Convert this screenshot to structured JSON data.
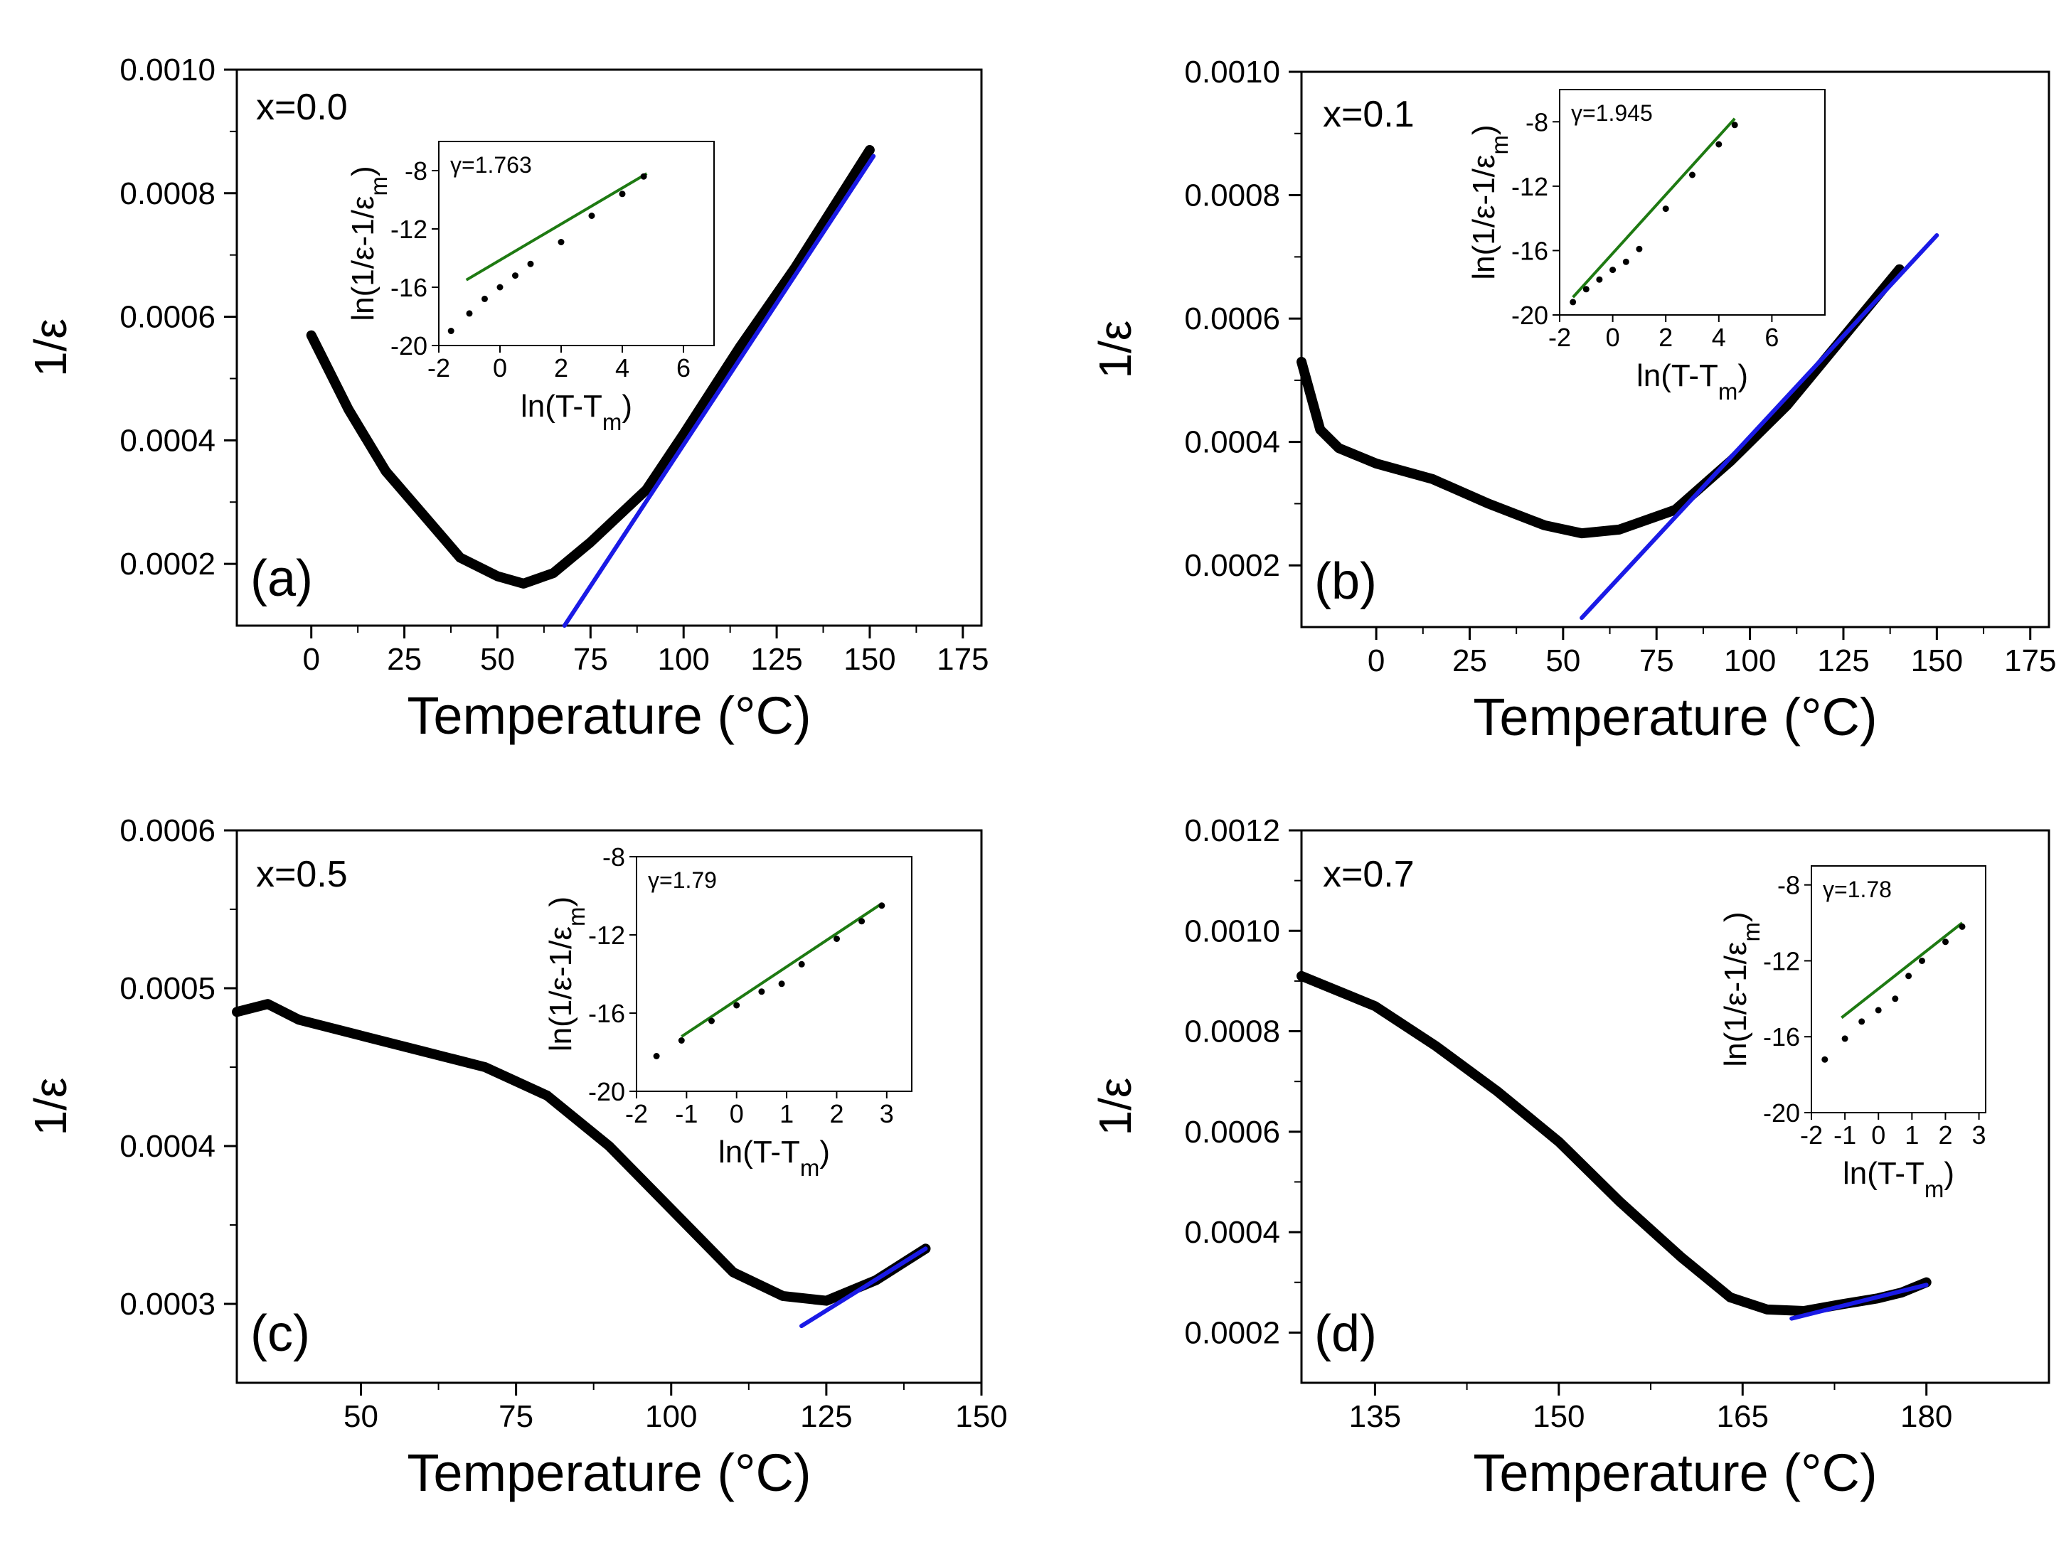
{
  "chart_data": [
    {
      "type": "line",
      "panel_label": "(a)",
      "composition_label": "x=0.0",
      "xlabel": "Temperature (°C)",
      "ylabel": "1/ε",
      "xlim": [
        -20,
        180
      ],
      "ylim": [
        0.0001,
        0.001
      ],
      "xticks": [
        "0",
        "25",
        "50",
        "75",
        "100",
        "125",
        "150",
        "175"
      ],
      "xtick_values": [
        0,
        25,
        50,
        75,
        100,
        125,
        150,
        175
      ],
      "yticks": [
        "0.0002",
        "0.0004",
        "0.0006",
        "0.0008",
        "0.0010"
      ],
      "ytick_values": [
        0.0002,
        0.0004,
        0.0006,
        0.0008,
        0.001
      ],
      "series": [
        {
          "name": "data",
          "color": "#000000",
          "points": [
            [
              0,
              0.00057
            ],
            [
              10,
              0.00045
            ],
            [
              20,
              0.00035
            ],
            [
              30,
              0.00028
            ],
            [
              40,
              0.00021
            ],
            [
              50,
              0.00018
            ],
            [
              57,
              0.000168
            ],
            [
              65,
              0.000185
            ],
            [
              75,
              0.000235
            ],
            [
              90,
              0.00032
            ],
            [
              100,
              0.00041
            ],
            [
              115,
              0.00055
            ],
            [
              130,
              0.00068
            ],
            [
              150,
              0.00087
            ]
          ]
        },
        {
          "name": "linear fit",
          "color": "#1a1ae6",
          "points": [
            [
              68,
              0.0001
            ],
            [
              151,
              0.00086
            ]
          ]
        }
      ],
      "inset": {
        "gamma_label": "γ=1.763",
        "xlabel": "ln(T-T_m)",
        "ylabel": "ln(1/ε-1/ε_m)",
        "xlim": [
          -2,
          7
        ],
        "ylim": [
          -20,
          -6
        ],
        "xticks": [
          "-2",
          "0",
          "2",
          "4",
          "6"
        ],
        "xtick_values": [
          -2,
          0,
          2,
          4,
          6
        ],
        "yticks": [
          "-20",
          "-16",
          "-12",
          "-8"
        ],
        "ytick_values": [
          -20,
          -16,
          -12,
          -8
        ],
        "data": [
          [
            -1.6,
            -19
          ],
          [
            -1,
            -17.8
          ],
          [
            -0.5,
            -16.8
          ],
          [
            0,
            -16
          ],
          [
            0.5,
            -15.2
          ],
          [
            1,
            -14.4
          ],
          [
            2,
            -12.9
          ],
          [
            3,
            -11.1
          ],
          [
            4,
            -9.6
          ],
          [
            4.7,
            -8.4
          ]
        ],
        "fit": [
          [
            -1.1,
            -15.5
          ],
          [
            4.8,
            -8.2
          ]
        ]
      }
    },
    {
      "type": "line",
      "panel_label": "(b)",
      "composition_label": "x=0.1",
      "xlabel": "Temperature (°C)",
      "ylabel": "1/ε",
      "xlim": [
        -20,
        180
      ],
      "ylim": [
        0.0001,
        0.001
      ],
      "xticks": [
        "0",
        "25",
        "50",
        "75",
        "100",
        "125",
        "150",
        "175"
      ],
      "xtick_values": [
        0,
        25,
        50,
        75,
        100,
        125,
        150,
        175
      ],
      "yticks": [
        "0.0002",
        "0.0004",
        "0.0006",
        "0.0008",
        "0.0010"
      ],
      "ytick_values": [
        0.0002,
        0.0004,
        0.0006,
        0.0008,
        0.001
      ],
      "series": [
        {
          "name": "data",
          "color": "#000000",
          "points": [
            [
              -20,
              0.00053
            ],
            [
              -15,
              0.00042
            ],
            [
              -10,
              0.00039
            ],
            [
              0,
              0.000365
            ],
            [
              15,
              0.00034
            ],
            [
              30,
              0.0003
            ],
            [
              45,
              0.000265
            ],
            [
              55,
              0.000252
            ],
            [
              65,
              0.000258
            ],
            [
              80,
              0.00029
            ],
            [
              95,
              0.00037
            ],
            [
              110,
              0.00046
            ],
            [
              125,
              0.00057
            ],
            [
              140,
              0.00068
            ]
          ]
        },
        {
          "name": "linear fit",
          "color": "#1a1ae6",
          "points": [
            [
              55,
              0.000115
            ],
            [
              150,
              0.000735
            ]
          ]
        }
      ],
      "inset": {
        "gamma_label": "γ=1.945",
        "xlabel": "ln(T-T_m)",
        "ylabel": "ln(1/ε-1/ε_m)",
        "xlim": [
          -2,
          8
        ],
        "ylim": [
          -20,
          -6
        ],
        "xticks": [
          "-2",
          "0",
          "2",
          "4",
          "6"
        ],
        "xtick_values": [
          -2,
          0,
          2,
          4,
          6
        ],
        "yticks": [
          "-20",
          "-16",
          "-12",
          "-8"
        ],
        "ytick_values": [
          -20,
          -16,
          -12,
          -8
        ],
        "data": [
          [
            -1.5,
            -19.2
          ],
          [
            -1,
            -18.4
          ],
          [
            -0.5,
            -17.8
          ],
          [
            0,
            -17.2
          ],
          [
            0.5,
            -16.7
          ],
          [
            1,
            -15.9
          ],
          [
            2,
            -13.4
          ],
          [
            3,
            -11.3
          ],
          [
            4,
            -9.4
          ],
          [
            4.6,
            -8.2
          ]
        ],
        "fit": [
          [
            -1.5,
            -18.9
          ],
          [
            4.6,
            -7.8
          ]
        ]
      }
    },
    {
      "type": "line",
      "panel_label": "(c)",
      "composition_label": "x=0.5",
      "xlabel": "Temperature (°C)",
      "ylabel": "1/ε",
      "xlim": [
        30,
        150
      ],
      "ylim": [
        0.00025,
        0.0006
      ],
      "xticks": [
        "50",
        "75",
        "100",
        "125",
        "150"
      ],
      "xtick_values": [
        50,
        75,
        100,
        125,
        150
      ],
      "yticks": [
        "0.0003",
        "0.0004",
        "0.0005",
        "0.0006"
      ],
      "ytick_values": [
        0.0003,
        0.0004,
        0.0005,
        0.0006
      ],
      "series": [
        {
          "name": "data",
          "color": "#000000",
          "points": [
            [
              30,
              0.000485
            ],
            [
              35,
              0.00049
            ],
            [
              40,
              0.00048
            ],
            [
              50,
              0.00047
            ],
            [
              60,
              0.00046
            ],
            [
              70,
              0.00045
            ],
            [
              80,
              0.000432
            ],
            [
              90,
              0.0004
            ],
            [
              100,
              0.00036
            ],
            [
              110,
              0.00032
            ],
            [
              118,
              0.000305
            ],
            [
              125,
              0.000302
            ],
            [
              133,
              0.000315
            ],
            [
              141,
              0.000335
            ]
          ]
        },
        {
          "name": "linear fit",
          "color": "#1a1ae6",
          "points": [
            [
              121,
              0.000286
            ],
            [
              141,
              0.000335
            ]
          ]
        }
      ],
      "inset": {
        "gamma_label": "γ=1.79",
        "xlabel": "ln(T-T_m)",
        "ylabel": "ln(1/ε-1/ε_m)",
        "xlim": [
          -2,
          3.5
        ],
        "ylim": [
          -20,
          -8
        ],
        "xticks": [
          "-2",
          "-1",
          "0",
          "1",
          "2",
          "3"
        ],
        "xtick_values": [
          -2,
          -1,
          0,
          1,
          2,
          3
        ],
        "yticks": [
          "-20",
          "-16",
          "-12",
          "-8"
        ],
        "ytick_values": [
          -20,
          -16,
          -12,
          -8
        ],
        "data": [
          [
            -1.6,
            -18.2
          ],
          [
            -1.1,
            -17.4
          ],
          [
            -0.5,
            -16.4
          ],
          [
            0,
            -15.6
          ],
          [
            0.5,
            -14.9
          ],
          [
            0.9,
            -14.5
          ],
          [
            1.3,
            -13.5
          ],
          [
            2,
            -12.2
          ],
          [
            2.5,
            -11.3
          ],
          [
            2.9,
            -10.5
          ]
        ],
        "fit": [
          [
            -1.1,
            -17.2
          ],
          [
            2.9,
            -10.4
          ]
        ]
      }
    },
    {
      "type": "line",
      "panel_label": "(d)",
      "composition_label": "x=0.7",
      "xlabel": "Temperature (°C)",
      "ylabel": "1/ε",
      "xlim": [
        129,
        190
      ],
      "ylim": [
        0.0001,
        0.0012
      ],
      "xticks": [
        "135",
        "150",
        "165",
        "180"
      ],
      "xtick_values": [
        135,
        150,
        165,
        180
      ],
      "yticks": [
        "0.0002",
        "0.0004",
        "0.0006",
        "0.0008",
        "0.0010",
        "0.0012"
      ],
      "ytick_values": [
        0.0002,
        0.0004,
        0.0006,
        0.0008,
        0.001,
        0.0012
      ],
      "series": [
        {
          "name": "data",
          "color": "#000000",
          "points": [
            [
              129,
              0.00091
            ],
            [
              135,
              0.00085
            ],
            [
              140,
              0.00077
            ],
            [
              145,
              0.00068
            ],
            [
              150,
              0.00058
            ],
            [
              155,
              0.00046
            ],
            [
              160,
              0.00035
            ],
            [
              164,
              0.00027
            ],
            [
              167,
              0.000246
            ],
            [
              170,
              0.000243
            ],
            [
              173,
              0.000256
            ],
            [
              176,
              0.000268
            ],
            [
              178,
              0.00028
            ],
            [
              180,
              0.0003
            ]
          ]
        },
        {
          "name": "linear fit",
          "color": "#1a1ae6",
          "points": [
            [
              169,
              0.000228
            ],
            [
              180,
              0.000295
            ]
          ]
        }
      ],
      "inset": {
        "gamma_label": "γ=1.78",
        "xlabel": "ln(T-T_m)",
        "ylabel": "ln(1/ε-1/ε_m)",
        "xlim": [
          -2,
          3.2
        ],
        "ylim": [
          -20,
          -7
        ],
        "xticks": [
          "-2",
          "-1",
          "0",
          "1",
          "2",
          "3"
        ],
        "xtick_values": [
          -2,
          -1,
          0,
          1,
          2,
          3
        ],
        "yticks": [
          "-20",
          "-16",
          "-12",
          "-8"
        ],
        "ytick_values": [
          -20,
          -16,
          -12,
          -8
        ],
        "data": [
          [
            -1.6,
            -17.2
          ],
          [
            -1,
            -16.1
          ],
          [
            -0.5,
            -15.2
          ],
          [
            0,
            -14.6
          ],
          [
            0.5,
            -14
          ],
          [
            0.9,
            -12.8
          ],
          [
            1.3,
            -12
          ],
          [
            2,
            -11
          ],
          [
            2.5,
            -10.2
          ]
        ],
        "fit": [
          [
            -1.1,
            -15
          ],
          [
            2.5,
            -10
          ]
        ]
      }
    }
  ]
}
